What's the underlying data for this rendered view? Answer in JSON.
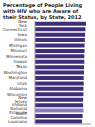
{
  "chart_data": {
    "type": "bar",
    "orientation": "horizontal",
    "title": "Percentage of People Living with HIV who are Aware of their Status, by State, 2012",
    "categories": [
      "New York",
      "Connecticut",
      "Iowa",
      "Illinois",
      "Michigan",
      "Missouri",
      "Minnesota",
      "Hawaii",
      "Texas",
      "Washington",
      "Maryland",
      "Utah",
      "Alabama",
      "Wisconsin",
      "New Jersey",
      "Indiana",
      "National Estimate",
      "South Carolina",
      "Louisiana"
    ],
    "values": [
      91,
      90,
      89.5,
      89,
      88.5,
      88.5,
      88,
      88,
      87.5,
      87.5,
      87,
      87,
      86.5,
      86.5,
      86,
      86,
      86.6,
      85,
      84
    ],
    "colors": [
      "#3f2d7a",
      "#3f2d7a",
      "#3f2d7a",
      "#3f2d7a",
      "#3f2d7a",
      "#3f2d7a",
      "#3f2d7a",
      "#3f2d7a",
      "#3f2d7a",
      "#3f2d7a",
      "#3f2d7a",
      "#3f2d7a",
      "#3f2d7a",
      "#3f2d7a",
      "#3f2d7a",
      "#3f2d7a",
      "#8a7cc0",
      "#3f2d7a",
      "#3f2d7a"
    ],
    "xlim": [
      0,
      100
    ],
    "tick_labels": "y"
  }
}
